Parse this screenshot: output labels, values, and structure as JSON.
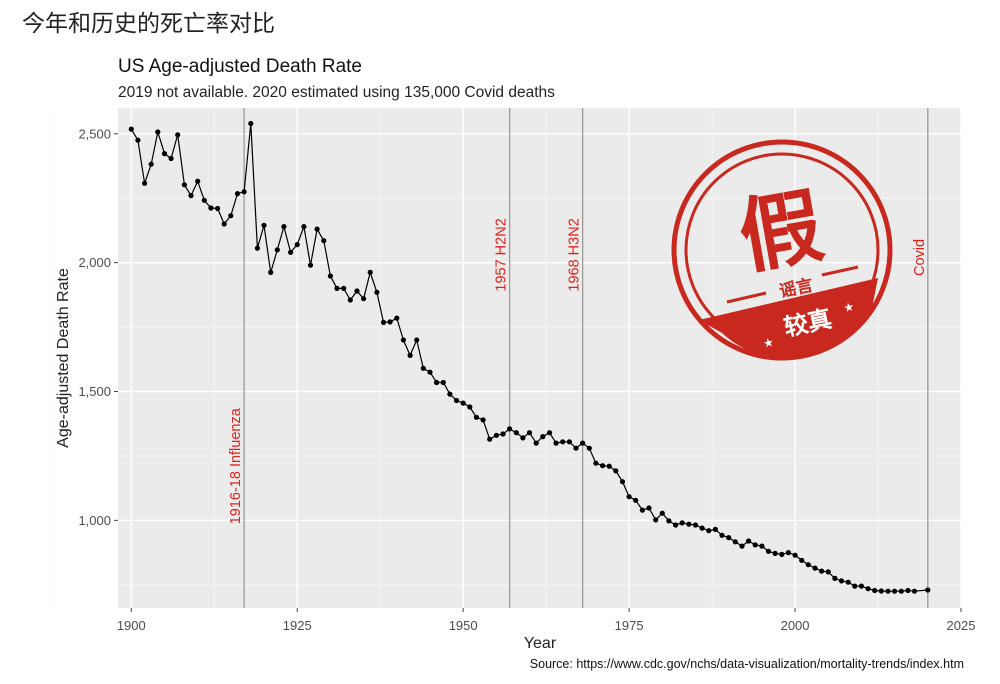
{
  "page": {
    "heading": "今年和历史的死亡率对比"
  },
  "stamp": {
    "main_char": "假",
    "sub_text": "谣言",
    "band_text": "较真",
    "color": "#c8281e"
  },
  "chart_data": {
    "type": "line",
    "title": "US Age-adjusted Death Rate",
    "subtitle": "2019 not available. 2020 estimated using 135,000 Covid deaths",
    "xlabel": "Year",
    "ylabel": "Age-adjusted Death Rate",
    "xlim": [
      1898,
      2025
    ],
    "ylim": [
      660,
      2600
    ],
    "x_ticks": [
      1900,
      1925,
      1950,
      1975,
      2000,
      2025
    ],
    "y_ticks": [
      1000,
      1500,
      2000,
      2500
    ],
    "y_tick_labels": [
      "1,000",
      "1,500",
      "2,000",
      "2,500"
    ],
    "source": "Source: https://www.cdc.gov/nchs/data-visualization/mortality-trends/index.htm",
    "line_color": "#000000",
    "annotation_color": "#e0201b",
    "annotations": [
      {
        "x": 1917,
        "label": "1916-18 Influenza",
        "label_y": 1210
      },
      {
        "x": 1957,
        "label": "1957 H2N2",
        "label_y": 2030
      },
      {
        "x": 1968,
        "label": "1968 H3N2",
        "label_y": 2030
      },
      {
        "x": 2020,
        "label": "Covid",
        "label_y": 2020
      }
    ],
    "series": [
      {
        "name": "Age-adjusted Death Rate",
        "x": [
          1900,
          1901,
          1902,
          1903,
          1904,
          1905,
          1906,
          1907,
          1908,
          1909,
          1910,
          1911,
          1912,
          1913,
          1914,
          1915,
          1916,
          1917,
          1918,
          1919,
          1920,
          1921,
          1922,
          1923,
          1924,
          1925,
          1926,
          1927,
          1928,
          1929,
          1930,
          1931,
          1932,
          1933,
          1934,
          1935,
          1936,
          1937,
          1938,
          1939,
          1940,
          1941,
          1942,
          1943,
          1944,
          1945,
          1946,
          1947,
          1948,
          1949,
          1950,
          1951,
          1952,
          1953,
          1954,
          1955,
          1956,
          1957,
          1958,
          1959,
          1960,
          1961,
          1962,
          1963,
          1964,
          1965,
          1966,
          1967,
          1968,
          1969,
          1970,
          1971,
          1972,
          1973,
          1974,
          1975,
          1976,
          1977,
          1978,
          1979,
          1980,
          1981,
          1982,
          1983,
          1984,
          1985,
          1986,
          1987,
          1988,
          1989,
          1990,
          1991,
          1992,
          1993,
          1994,
          1995,
          1996,
          1997,
          1998,
          1999,
          2000,
          2001,
          2002,
          2003,
          2004,
          2005,
          2006,
          2007,
          2008,
          2009,
          2010,
          2011,
          2012,
          2013,
          2014,
          2015,
          2016,
          2017,
          2018,
          2020
        ],
        "values": [
          2518,
          2475,
          2308,
          2382,
          2507,
          2423,
          2404,
          2496,
          2302,
          2260,
          2316,
          2242,
          2212,
          2210,
          2150,
          2182,
          2268,
          2275,
          2540,
          2056,
          2145,
          1962,
          2050,
          2140,
          2040,
          2070,
          2140,
          1990,
          2130,
          2085,
          1948,
          1900,
          1900,
          1855,
          1890,
          1860,
          1962,
          1885,
          1768,
          1770,
          1785,
          1700,
          1640,
          1700,
          1590,
          1575,
          1535,
          1535,
          1490,
          1465,
          1455,
          1440,
          1400,
          1390,
          1315,
          1330,
          1335,
          1355,
          1340,
          1320,
          1340,
          1300,
          1325,
          1340,
          1300,
          1305,
          1305,
          1280,
          1300,
          1280,
          1222,
          1212,
          1210,
          1192,
          1150,
          1092,
          1078,
          1040,
          1048,
          1002,
          1028,
          998,
          982,
          990,
          985,
          982,
          970,
          960,
          965,
          942,
          933,
          917,
          900,
          920,
          905,
          900,
          880,
          872,
          868,
          875,
          865,
          845,
          828,
          815,
          803,
          800,
          775,
          765,
          760,
          745,
          745,
          735,
          728,
          726,
          725,
          725,
          725,
          728,
          725,
          730
        ]
      }
    ]
  }
}
